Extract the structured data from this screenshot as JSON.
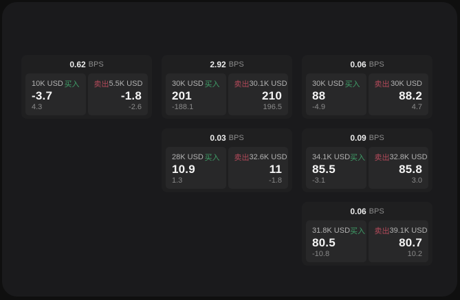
{
  "labels": {
    "buy": "买入",
    "sell": "卖出",
    "bps": "BPS"
  },
  "colors": {
    "buy": "#3f9e68",
    "sell": "#b34a5a",
    "panel": "#1a1a1c",
    "card": "#1f1f20",
    "tile": "#282829"
  },
  "cards": [
    {
      "bps": "0.62",
      "buy_amount": "10K USD",
      "buy_value": "-3.7",
      "buy_sub": "4.3",
      "sell_amount": "5.5K USD",
      "sell_value": "-1.8",
      "sell_sub": "-2.6"
    },
    {
      "bps": "2.92",
      "buy_amount": "30K USD",
      "buy_value": "201",
      "buy_sub": "-188.1",
      "sell_amount": "30.1K USD",
      "sell_value": "210",
      "sell_sub": "196.5"
    },
    {
      "bps": "0.06",
      "buy_amount": "30K USD",
      "buy_value": "88",
      "buy_sub": "-4.9",
      "sell_amount": "30K USD",
      "sell_value": "88.2",
      "sell_sub": "4.7"
    },
    {
      "bps": "0.03",
      "buy_amount": "28K USD",
      "buy_value": "10.9",
      "buy_sub": "1.3",
      "sell_amount": "32.6K USD",
      "sell_value": "11",
      "sell_sub": "-1.8"
    },
    {
      "bps": "0.09",
      "buy_amount": "34.1K USD",
      "buy_value": "85.5",
      "buy_sub": "-3.1",
      "sell_amount": "32.8K USD",
      "sell_value": "85.8",
      "sell_sub": "3.0"
    },
    {
      "bps": "0.06",
      "buy_amount": "31.8K USD",
      "buy_value": "80.5",
      "buy_sub": "-10.8",
      "sell_amount": "39.1K USD",
      "sell_value": "80.7",
      "sell_sub": "10.2"
    }
  ]
}
